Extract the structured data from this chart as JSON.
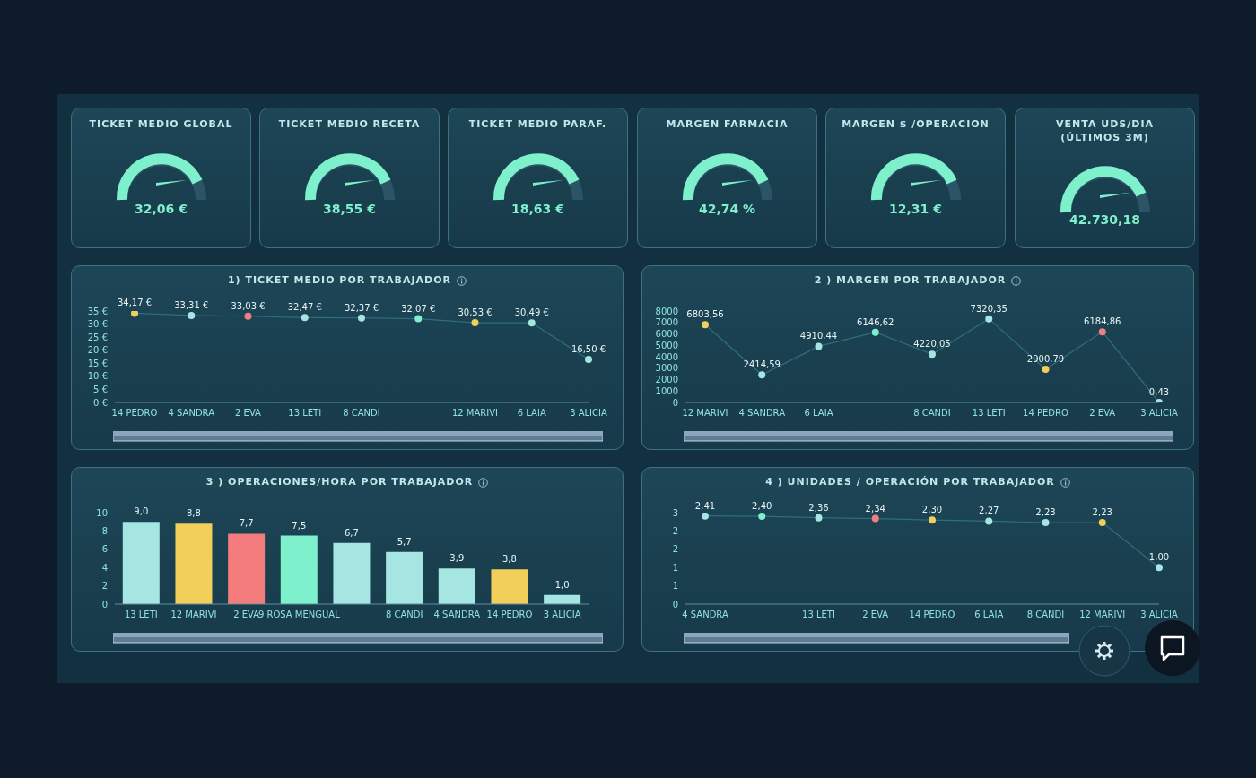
{
  "chart_data": [
    {
      "type": "other",
      "title": "TICKET MEDIO GLOBAL",
      "annotations": [
        "32,06 €"
      ]
    },
    {
      "type": "other",
      "title": "TICKET MEDIO RECETA",
      "annotations": [
        "38,55 €"
      ]
    },
    {
      "type": "other",
      "title": "TICKET MEDIO PARAF.",
      "annotations": [
        "18,63 €"
      ]
    },
    {
      "type": "other",
      "title": "MARGEN FARMACIA",
      "annotations": [
        "42,74 %"
      ]
    },
    {
      "type": "other",
      "title": "MARGEN $ /OPERACION",
      "annotations": [
        "12,31 €"
      ]
    },
    {
      "type": "other",
      "title": "VENTA UDS/DIA (ÚLTIMOS 3M)",
      "annotations": [
        "42.730,18"
      ]
    },
    {
      "type": "line",
      "title": "1) TICKET MEDIO POR TRABAJADOR",
      "categories": [
        "14 PEDRO",
        "4 SANDRA",
        "2 EVA",
        "13 LETI",
        "8 CANDI",
        null,
        "12 MARIVI",
        "6 LAIA",
        "3 ALICIA"
      ],
      "color": "#2f6e7c",
      "marker": "circle",
      "values": [
        34.17,
        33.31,
        33.03,
        32.47,
        32.37,
        32.07,
        30.53,
        30.49,
        16.5
      ],
      "colors": [
        "#f2cf5b",
        "#a5e6e3",
        "#f08080",
        "#a5e6e3",
        "#a5e6e3",
        "#7ff0cc",
        "#f2cf5b",
        "#a5e6e3",
        "#a5e6e3"
      ],
      "value_labels": [
        "34,17 €",
        "33,31 €",
        "33,03 €",
        "32,47 €",
        "32,37 €",
        "32,07 €",
        "30,53 €",
        "30,49 €",
        "16,50 €"
      ],
      "ylim": [
        0,
        35
      ],
      "yticks": [
        {
          "value": 0,
          "label": "0 €"
        },
        {
          "value": 5,
          "label": "5 €"
        },
        {
          "value": 10,
          "label": "10 €"
        },
        {
          "value": 15,
          "label": "15 €"
        },
        {
          "value": 20,
          "label": "20 €"
        },
        {
          "value": 25,
          "label": "25 €"
        },
        {
          "value": 30,
          "label": "30 €"
        },
        {
          "value": 35,
          "label": "35 €"
        }
      ]
    },
    {
      "type": "line",
      "title": "2 ) MARGEN POR TRABAJADOR",
      "categories": [
        "12 MARIVI",
        "4 SANDRA",
        "6 LAIA",
        null,
        "8 CANDI",
        "13 LETI",
        "14 PEDRO",
        "2 EVA",
        "3 ALICIA"
      ],
      "color": "#2f6e7c",
      "marker": "circle",
      "values": [
        6803.56,
        2414.59,
        4910.44,
        6146.62,
        4220.05,
        7320.35,
        2900.79,
        6184.86,
        0.43
      ],
      "colors": [
        "#f2cf5b",
        "#a5e6e3",
        "#a5e6e3",
        "#7ff0cc",
        "#a5e6e3",
        "#a5e6e3",
        "#f2cf5b",
        "#f08080",
        "#a5e6e3"
      ],
      "value_labels": [
        "6803,56",
        "2414,59",
        "4910,44",
        "6146,62",
        "4220,05",
        "7320,35",
        "2900,79",
        "6184,86",
        "0,43"
      ],
      "ylim": [
        0,
        8000
      ],
      "yticks": [
        0,
        1000,
        2000,
        3000,
        4000,
        5000,
        6000,
        7000,
        8000
      ]
    },
    {
      "type": "bar",
      "title": "3 ) OPERACIONES/HORA POR TRABAJADOR",
      "categories": [
        "13 LETI",
        "12 MARIVI",
        "2 EVA",
        "9 ROSA MENGUAL",
        null,
        "8 CANDI",
        "4 SANDRA",
        "14 PEDRO",
        "3 ALICIA"
      ],
      "values": [
        9.0,
        8.8,
        7.7,
        7.5,
        6.7,
        5.7,
        3.9,
        3.8,
        1.0
      ],
      "colors": [
        "#a5e6e3",
        "#f2cf5b",
        "#f47c7c",
        "#7ff0cc",
        "#a5e6e3",
        "#a5e6e3",
        "#a5e6e3",
        "#f2cf5b",
        "#a5e6e3"
      ],
      "value_labels": [
        "9,0",
        "8,8",
        "7,7",
        "7,5",
        "6,7",
        "5,7",
        "3,9",
        "3,8",
        "1,0"
      ],
      "ylim": [
        0,
        10
      ],
      "yticks": [
        0,
        2,
        4,
        6,
        8,
        10
      ]
    },
    {
      "type": "line",
      "title": "4 ) UNIDADES / OPERACIÓN POR TRABAJADOR",
      "categories": [
        "4 SANDRA",
        null,
        "13 LETI",
        "2 EVA",
        "14 PEDRO",
        "6 LAIA",
        "8 CANDI",
        "12 MARIVI",
        "3 ALICIA"
      ],
      "color": "#2f6e7c",
      "marker": "circle",
      "values": [
        2.41,
        2.4,
        2.36,
        2.34,
        2.3,
        2.27,
        2.23,
        2.23,
        1.0
      ],
      "colors": [
        "#a5e6e3",
        "#7ff0cc",
        "#a5e6e3",
        "#f08080",
        "#f2cf5b",
        "#a5e6e3",
        "#a5e6e3",
        "#f2cf5b",
        "#a5e6e3"
      ],
      "value_labels": [
        "2,41",
        "2,40",
        "2,36",
        "2,34",
        "2,30",
        "2,27",
        "2,23",
        "2,23",
        "1,00"
      ],
      "ylim": [
        0,
        2.5
      ],
      "yticks": [
        {
          "value": 0,
          "label": "0"
        },
        {
          "value": 0.5,
          "label": "1"
        },
        {
          "value": 1,
          "label": "1"
        },
        {
          "value": 1.5,
          "label": "2"
        },
        {
          "value": 2,
          "label": "2"
        },
        {
          "value": 2.5,
          "label": "3"
        }
      ]
    }
  ]
}
